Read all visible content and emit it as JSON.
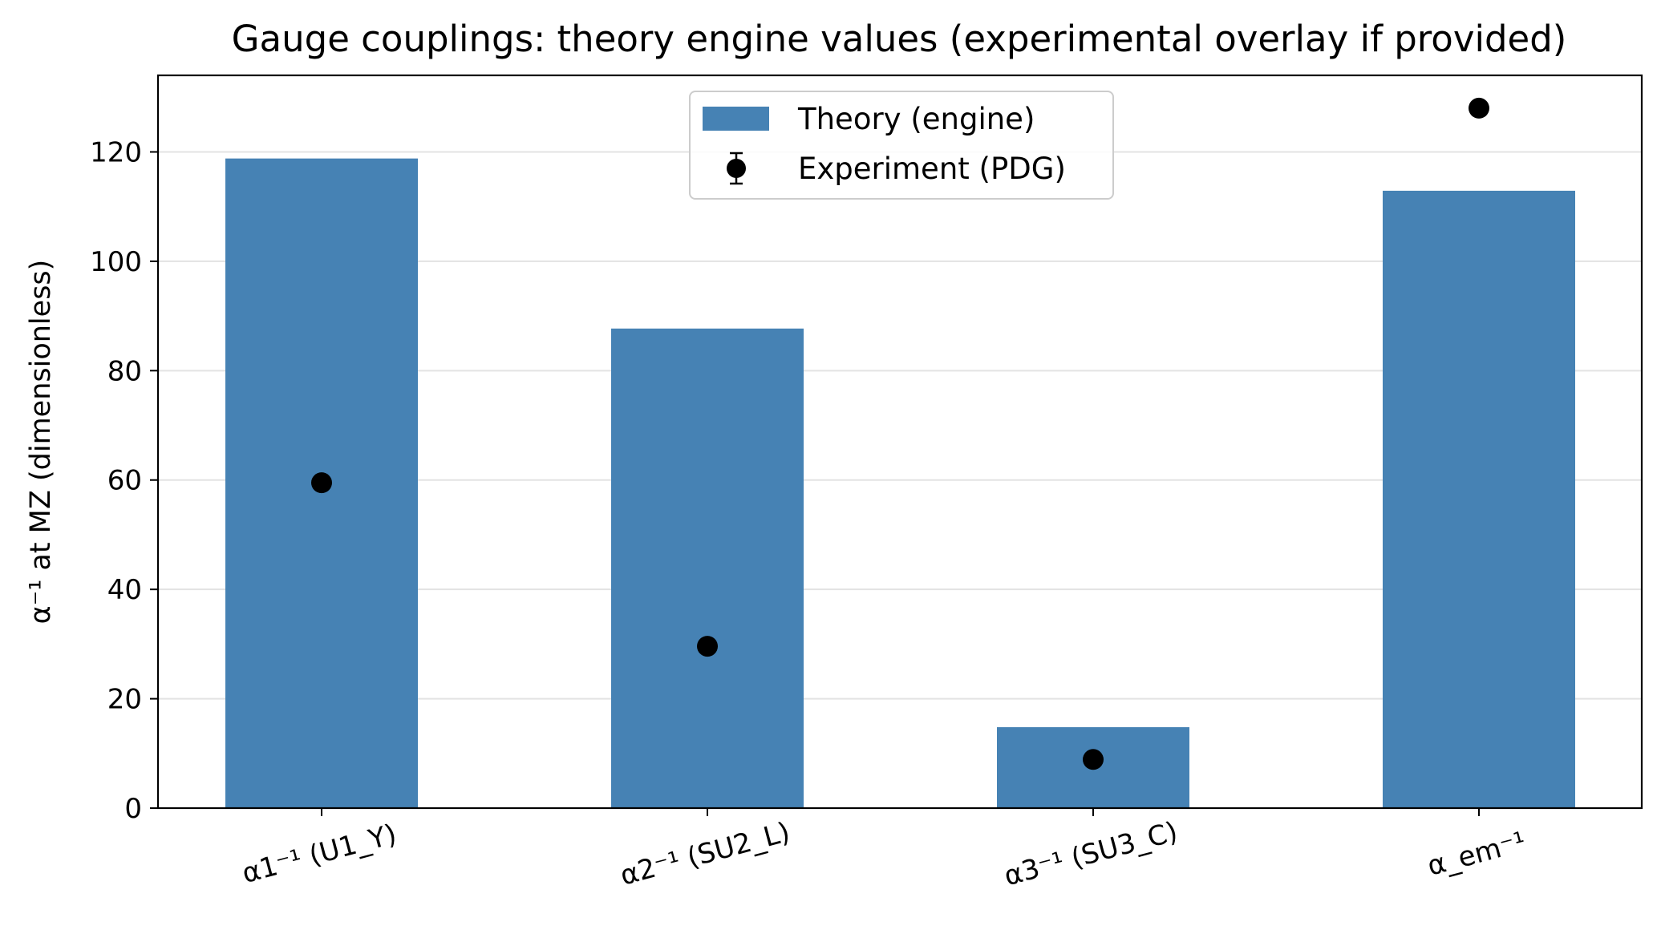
{
  "chart_data": {
    "type": "bar",
    "title": "Gauge couplings: theory engine values (experimental overlay if provided)",
    "xlabel": "",
    "ylabel": "α⁻¹ at MZ (dimensionless)",
    "categories": [
      "α1⁻¹ (U1_Y)",
      "α2⁻¹ (SU2_L)",
      "α3⁻¹ (SU3_C)",
      "α_em⁻¹"
    ],
    "series": [
      {
        "name": "Theory (engine)",
        "kind": "bar",
        "color": "#4682b4",
        "values": [
          118.8,
          87.7,
          14.8,
          112.9
        ]
      },
      {
        "name": "Experiment (PDG)",
        "kind": "errorbar-point",
        "color": "#000000",
        "values": [
          59.5,
          29.6,
          8.9,
          128.0
        ]
      }
    ],
    "yticks": [
      0,
      20,
      40,
      60,
      80,
      100,
      120
    ],
    "ylim": [
      0,
      134
    ],
    "grid": "horizontal",
    "legend_position": "top-center"
  }
}
